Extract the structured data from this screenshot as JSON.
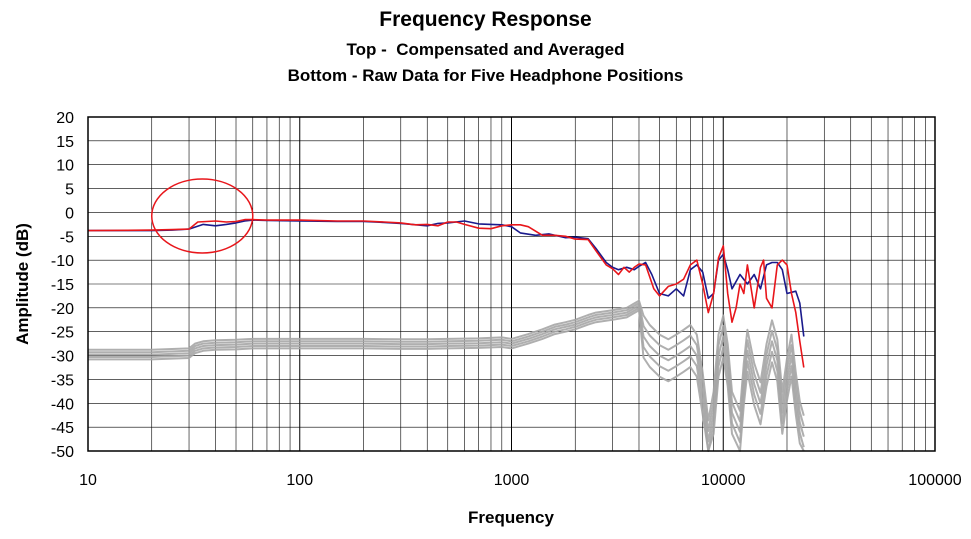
{
  "chart_data": {
    "type": "line",
    "title": "Frequency Response",
    "subtitle": [
      "Top -  Compensated and Averaged",
      "Bottom - Raw Data for Five Headphone Positions"
    ],
    "xlabel": "Frequency",
    "ylabel": "Amplitude (dB)",
    "xscale": "log",
    "xlim": [
      10,
      100000
    ],
    "ylim": [
      -50,
      20
    ],
    "xticks": [
      10,
      100,
      1000,
      10000,
      100000
    ],
    "xtick_labels": [
      "10",
      "100",
      "1000",
      "10000",
      "100000"
    ],
    "yticks": [
      20,
      15,
      10,
      5,
      0,
      -5,
      -10,
      -15,
      -20,
      -25,
      -30,
      -35,
      -40,
      -45,
      -50
    ],
    "ytick_labels": [
      "20",
      "15",
      "10",
      "5",
      "0",
      "-5",
      "-10",
      "-15",
      "-20",
      "-25",
      "-30",
      "-35",
      "-40",
      "-45",
      "-50"
    ],
    "grid": true,
    "legend": "none",
    "colors": {
      "compensated_a": "#1a1a8c",
      "compensated_b": "#e8161b",
      "raw": "#a6a6a6",
      "annotation": "#e8161b"
    },
    "series": [
      {
        "color": "#1a1a8c",
        "points": [
          [
            10,
            -3.8
          ],
          [
            20,
            -3.8
          ],
          [
            25,
            -3.7
          ],
          [
            30,
            -3.5
          ],
          [
            35,
            -2.5
          ],
          [
            40,
            -2.8
          ],
          [
            45,
            -2.5
          ],
          [
            50,
            -2.2
          ],
          [
            55,
            -1.8
          ],
          [
            60,
            -1.6
          ],
          [
            70,
            -1.7
          ],
          [
            100,
            -1.8
          ],
          [
            150,
            -1.9
          ],
          [
            200,
            -1.9
          ],
          [
            250,
            -2.1
          ],
          [
            300,
            -2.3
          ],
          [
            400,
            -2.8
          ],
          [
            450,
            -2.3
          ],
          [
            500,
            -2.2
          ],
          [
            600,
            -1.8
          ],
          [
            700,
            -2.4
          ],
          [
            800,
            -2.5
          ],
          [
            900,
            -2.6
          ],
          [
            1000,
            -3.0
          ],
          [
            1100,
            -4.3
          ],
          [
            1300,
            -4.8
          ],
          [
            1500,
            -4.5
          ],
          [
            1800,
            -5.3
          ],
          [
            2000,
            -5.2
          ],
          [
            2300,
            -5.5
          ],
          [
            2500,
            -7.5
          ],
          [
            2800,
            -10.5
          ],
          [
            3000,
            -11.5
          ],
          [
            3200,
            -12.0
          ],
          [
            3500,
            -11.5
          ],
          [
            3800,
            -12.0
          ],
          [
            4000,
            -11.3
          ],
          [
            4300,
            -10.5
          ],
          [
            4600,
            -13.0
          ],
          [
            5000,
            -17.0
          ],
          [
            5500,
            -17.5
          ],
          [
            6000,
            -16.0
          ],
          [
            6500,
            -17.5
          ],
          [
            7000,
            -12.0
          ],
          [
            7500,
            -11.0
          ],
          [
            8000,
            -12.5
          ],
          [
            8500,
            -18.0
          ],
          [
            9000,
            -17.0
          ],
          [
            9500,
            -10.0
          ],
          [
            10000,
            -8.8
          ],
          [
            10500,
            -12.0
          ],
          [
            11000,
            -16.0
          ],
          [
            12000,
            -13.0
          ],
          [
            13000,
            -15.0
          ],
          [
            14000,
            -13.0
          ],
          [
            15000,
            -16.0
          ],
          [
            16000,
            -11.0
          ],
          [
            17000,
            -10.5
          ],
          [
            18000,
            -10.5
          ],
          [
            19000,
            -12.0
          ],
          [
            20000,
            -17.0
          ],
          [
            22000,
            -16.5
          ],
          [
            23000,
            -19.0
          ],
          [
            24000,
            -26.0
          ]
        ]
      },
      {
        "color": "#e8161b",
        "points": [
          [
            10,
            -3.8
          ],
          [
            20,
            -3.7
          ],
          [
            25,
            -3.6
          ],
          [
            30,
            -3.5
          ],
          [
            33,
            -2.0
          ],
          [
            40,
            -1.8
          ],
          [
            45,
            -2.0
          ],
          [
            50,
            -1.9
          ],
          [
            55,
            -1.5
          ],
          [
            60,
            -1.5
          ],
          [
            70,
            -1.6
          ],
          [
            100,
            -1.6
          ],
          [
            150,
            -1.8
          ],
          [
            200,
            -1.8
          ],
          [
            250,
            -2.0
          ],
          [
            300,
            -2.2
          ],
          [
            350,
            -2.6
          ],
          [
            400,
            -2.5
          ],
          [
            450,
            -2.8
          ],
          [
            500,
            -2.0
          ],
          [
            550,
            -2.0
          ],
          [
            600,
            -2.5
          ],
          [
            700,
            -3.3
          ],
          [
            800,
            -3.4
          ],
          [
            900,
            -2.8
          ],
          [
            1000,
            -2.6
          ],
          [
            1100,
            -2.6
          ],
          [
            1200,
            -3.0
          ],
          [
            1400,
            -4.8
          ],
          [
            1600,
            -4.8
          ],
          [
            1800,
            -5.0
          ],
          [
            2000,
            -5.6
          ],
          [
            2300,
            -5.7
          ],
          [
            2500,
            -8.0
          ],
          [
            2800,
            -11.0
          ],
          [
            3000,
            -11.8
          ],
          [
            3200,
            -13.0
          ],
          [
            3400,
            -11.5
          ],
          [
            3600,
            -12.5
          ],
          [
            3800,
            -11.5
          ],
          [
            4000,
            -10.8
          ],
          [
            4300,
            -11.0
          ],
          [
            4700,
            -16.0
          ],
          [
            5000,
            -17.5
          ],
          [
            5500,
            -15.5
          ],
          [
            6000,
            -15.0
          ],
          [
            6500,
            -14.0
          ],
          [
            7000,
            -11.0
          ],
          [
            7500,
            -10.0
          ],
          [
            8000,
            -15.0
          ],
          [
            8500,
            -21.0
          ],
          [
            9000,
            -17.0
          ],
          [
            9500,
            -9.5
          ],
          [
            10000,
            -7.0
          ],
          [
            10500,
            -17.0
          ],
          [
            11000,
            -23.0
          ],
          [
            11500,
            -20.0
          ],
          [
            12000,
            -15.0
          ],
          [
            12500,
            -17.0
          ],
          [
            13000,
            -11.0
          ],
          [
            14000,
            -20.0
          ],
          [
            15000,
            -11.5
          ],
          [
            15500,
            -10.0
          ],
          [
            16000,
            -18.0
          ],
          [
            17000,
            -20.0
          ],
          [
            18000,
            -11.0
          ],
          [
            19000,
            -10.0
          ],
          [
            20000,
            -11.0
          ],
          [
            21000,
            -17.0
          ],
          [
            22000,
            -21.0
          ],
          [
            23000,
            -27.0
          ],
          [
            24000,
            -32.5
          ]
        ]
      }
    ],
    "raw_band": {
      "color": "#a6a6a6",
      "count": 5,
      "points": [
        [
          10,
          -29.8
        ],
        [
          20,
          -29.8
        ],
        [
          30,
          -29.5
        ],
        [
          32,
          -28.5
        ],
        [
          35,
          -28.0
        ],
        [
          40,
          -27.8
        ],
        [
          50,
          -27.7
        ],
        [
          60,
          -27.5
        ],
        [
          100,
          -27.5
        ],
        [
          200,
          -27.5
        ],
        [
          300,
          -27.6
        ],
        [
          400,
          -27.6
        ],
        [
          500,
          -27.5
        ],
        [
          700,
          -27.4
        ],
        [
          900,
          -27.2
        ],
        [
          1000,
          -27.5
        ],
        [
          1200,
          -26.5
        ],
        [
          1400,
          -25.5
        ],
        [
          1600,
          -24.5
        ],
        [
          1800,
          -24.0
        ],
        [
          2000,
          -23.5
        ],
        [
          2300,
          -22.5
        ],
        [
          2500,
          -22.0
        ],
        [
          3000,
          -21.5
        ],
        [
          3500,
          -21.0
        ],
        [
          4000,
          -19.5
        ],
        [
          4200,
          -26.0
        ],
        [
          4500,
          -28.0
        ],
        [
          5000,
          -30.0
        ],
        [
          5500,
          -31.0
        ],
        [
          6000,
          -30.0
        ],
        [
          6500,
          -29.0
        ],
        [
          7000,
          -28.0
        ],
        [
          7500,
          -30.0
        ],
        [
          8000,
          -38.0
        ],
        [
          8500,
          -48.0
        ],
        [
          9000,
          -42.0
        ],
        [
          9500,
          -30.0
        ],
        [
          10000,
          -26.0
        ],
        [
          10500,
          -32.0
        ],
        [
          11000,
          -42.0
        ],
        [
          12000,
          -46.0
        ],
        [
          12500,
          -36.0
        ],
        [
          13000,
          -29.0
        ],
        [
          14000,
          -36.0
        ],
        [
          15000,
          -40.0
        ],
        [
          16000,
          -32.0
        ],
        [
          17000,
          -27.0
        ],
        [
          18000,
          -31.0
        ],
        [
          19000,
          -42.0
        ],
        [
          20000,
          -35.0
        ],
        [
          21000,
          -30.0
        ],
        [
          22000,
          -38.0
        ],
        [
          23000,
          -44.0
        ],
        [
          24000,
          -47.0
        ]
      ]
    },
    "annotation": {
      "type": "ellipse",
      "color": "#e8161b",
      "x_range": [
        20,
        60
      ],
      "y_range": [
        -8.5,
        7
      ]
    }
  }
}
